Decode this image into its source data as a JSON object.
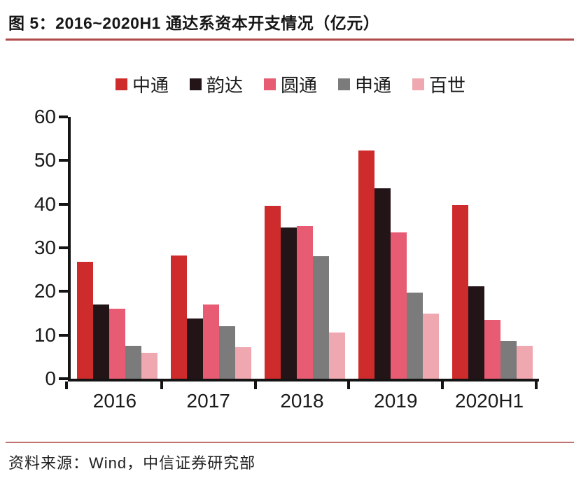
{
  "figure": {
    "title": "图 5：2016~2020H1 通达系资本开支情况（亿元）",
    "source": "资料来源：Wind，中信证券研究部"
  },
  "colors": {
    "title_underline": "#b04a4a",
    "source_divider": "#bf7272",
    "axis": "#141414"
  },
  "chart_data": {
    "type": "bar",
    "title": "2016~2020H1 通达系资本开支情况（亿元）",
    "categories": [
      "2016",
      "2017",
      "2018",
      "2019",
      "2020H1"
    ],
    "series": [
      {
        "name": "中通",
        "color": "#ce2b2c",
        "values": [
          26.8,
          28.3,
          39.7,
          52.3,
          39.8
        ]
      },
      {
        "name": "韵达",
        "color": "#231417",
        "values": [
          17.0,
          13.8,
          34.6,
          43.7,
          21.2
        ]
      },
      {
        "name": "圆通",
        "color": "#e75c72",
        "values": [
          16.0,
          17.0,
          34.9,
          33.6,
          13.4
        ]
      },
      {
        "name": "申通",
        "color": "#7b7b7b",
        "values": [
          7.5,
          12.1,
          28.1,
          19.8,
          8.6
        ]
      },
      {
        "name": "百世",
        "color": "#f0a8b0",
        "values": [
          6.0,
          7.3,
          10.6,
          14.9,
          7.6
        ]
      }
    ],
    "xlabel": "",
    "ylabel": "",
    "ylim": [
      0,
      60
    ],
    "yticks": [
      0,
      10,
      20,
      30,
      40,
      50,
      60
    ],
    "grid": false,
    "legend_position": "top"
  }
}
